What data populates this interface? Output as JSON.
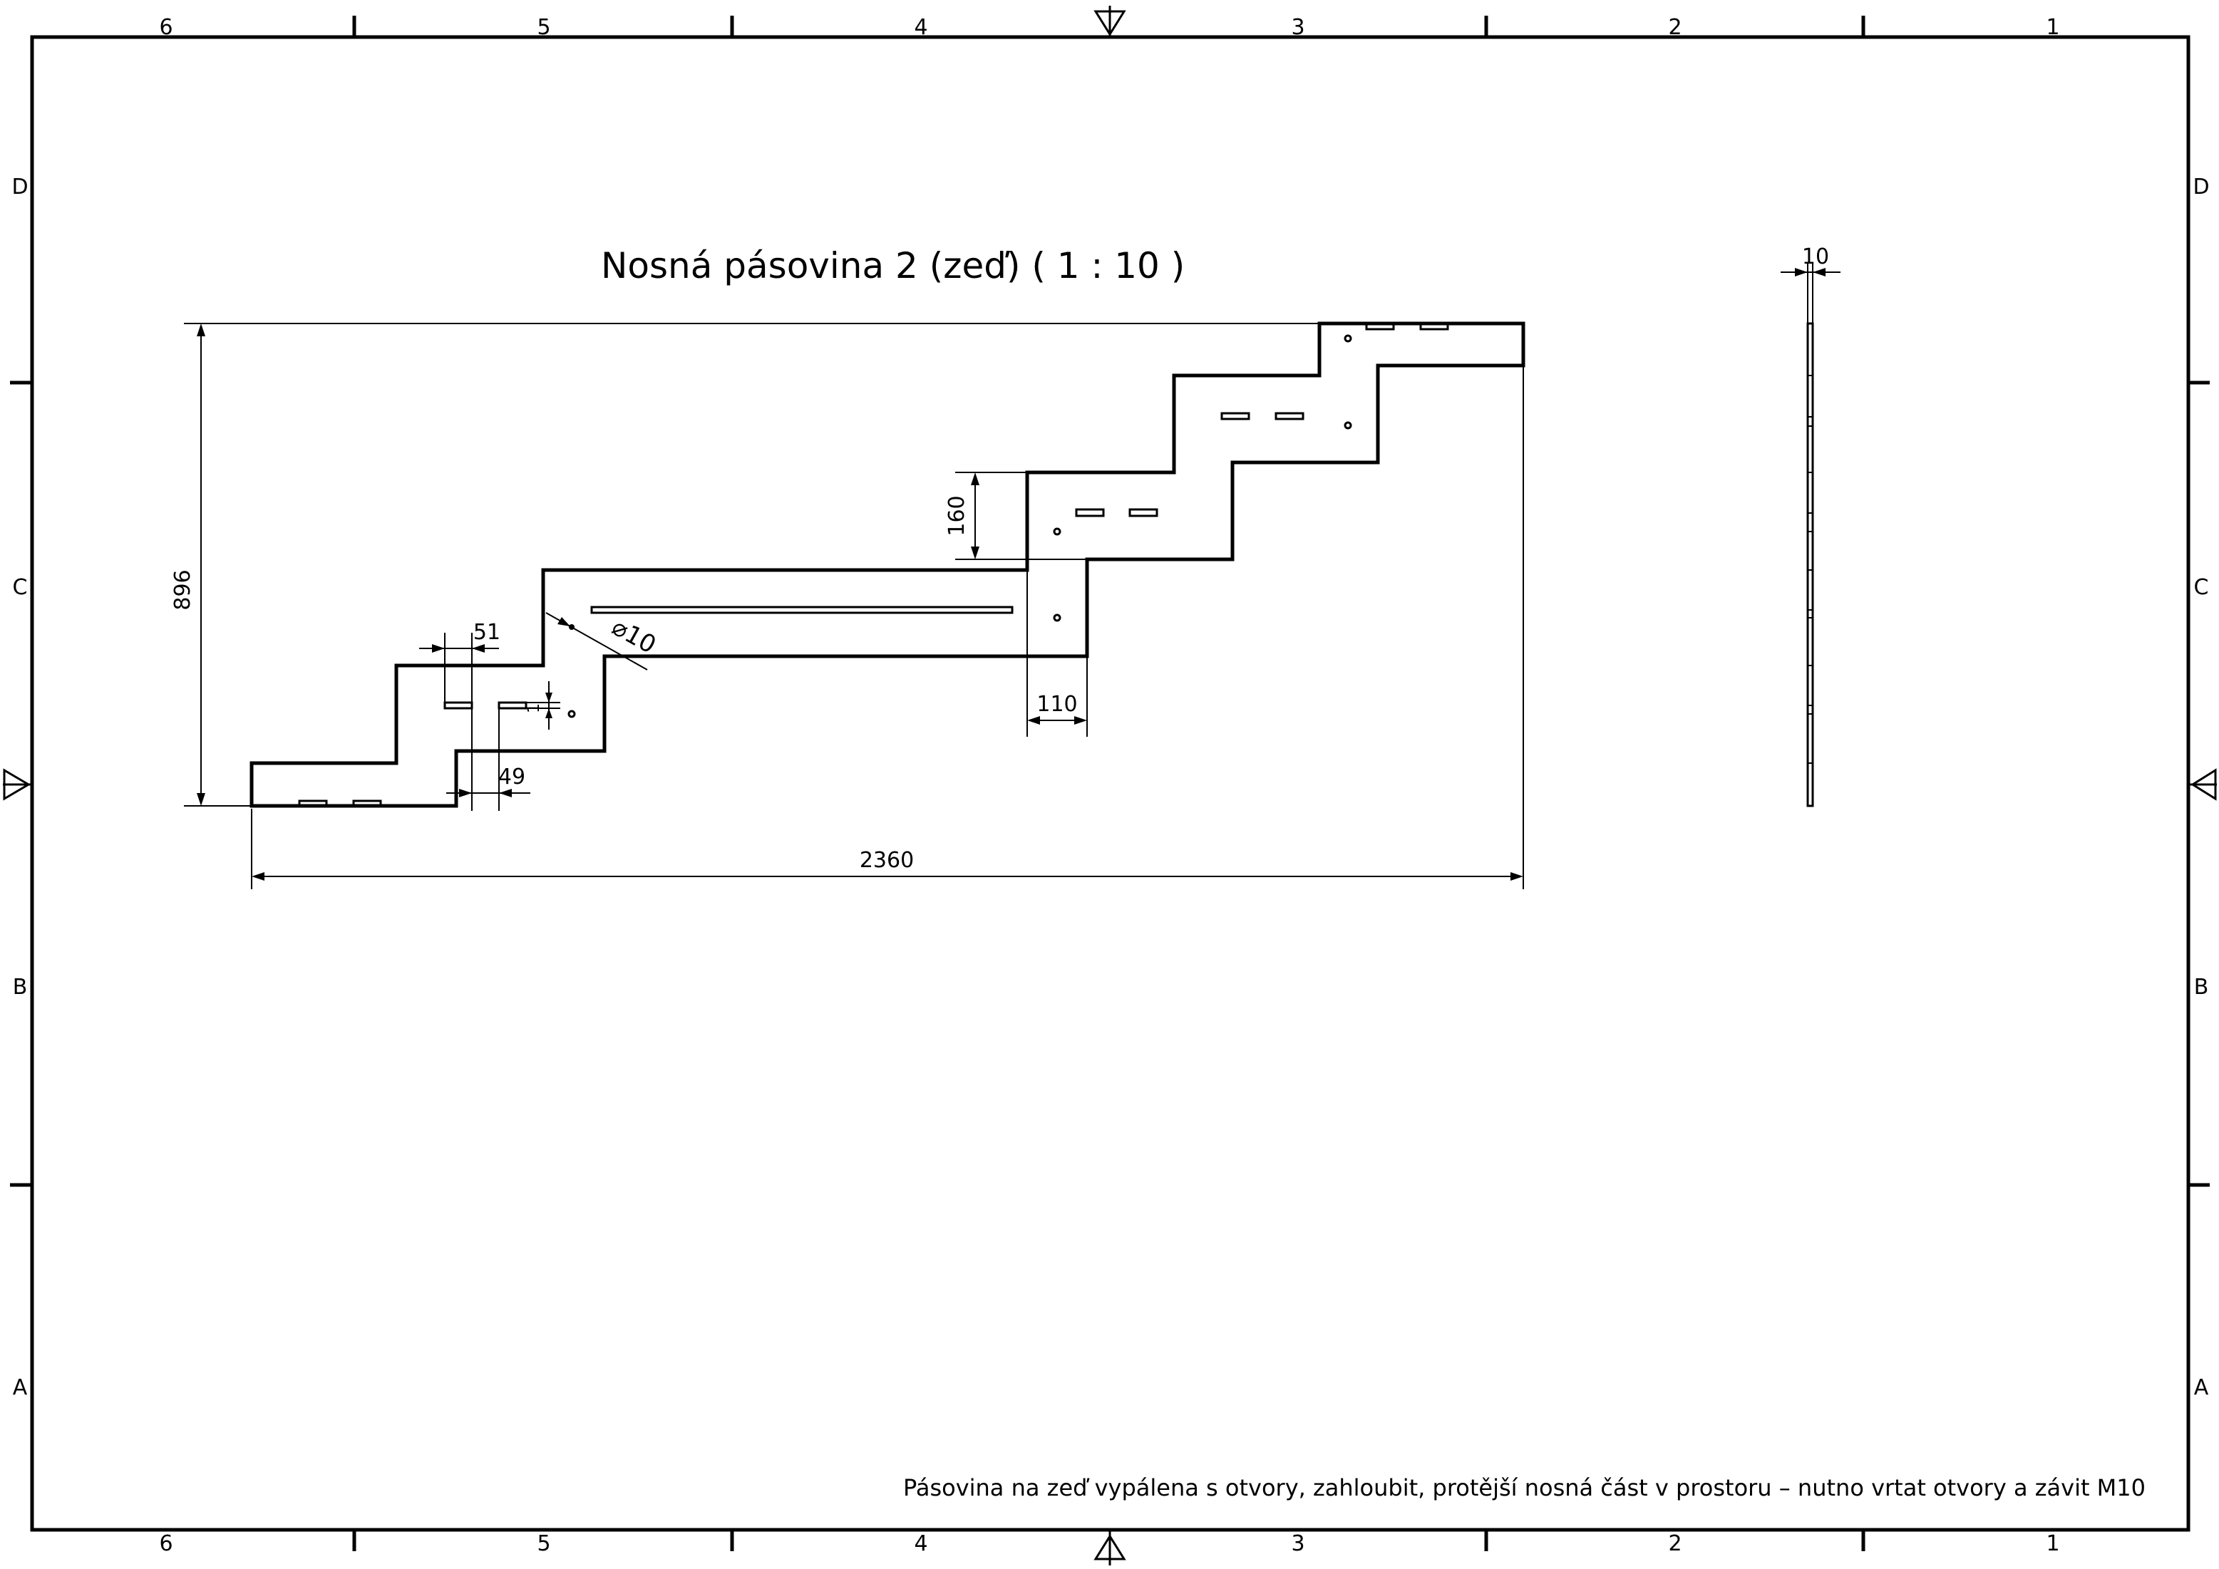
{
  "drawing": {
    "title": "Nosná pásovina 2 (zeď) ( 1 : 10 )",
    "note": "Pásovina na zeď vypálena s otvory, zahloubit, protější nosná část v prostoru – nutno vrtat otvory a závit M10"
  },
  "border": {
    "columns": [
      "6",
      "5",
      "4",
      "3",
      "2",
      "1"
    ],
    "rows": [
      "D",
      "C",
      "B",
      "A"
    ]
  },
  "dimensions": {
    "height": "896",
    "width": "2360",
    "step_height": "160",
    "step_width": "110",
    "slot_width_a": "51",
    "slot_width_b": "49",
    "hole_diameter": "⌀10",
    "small_gap": "1",
    "thickness": "10"
  }
}
